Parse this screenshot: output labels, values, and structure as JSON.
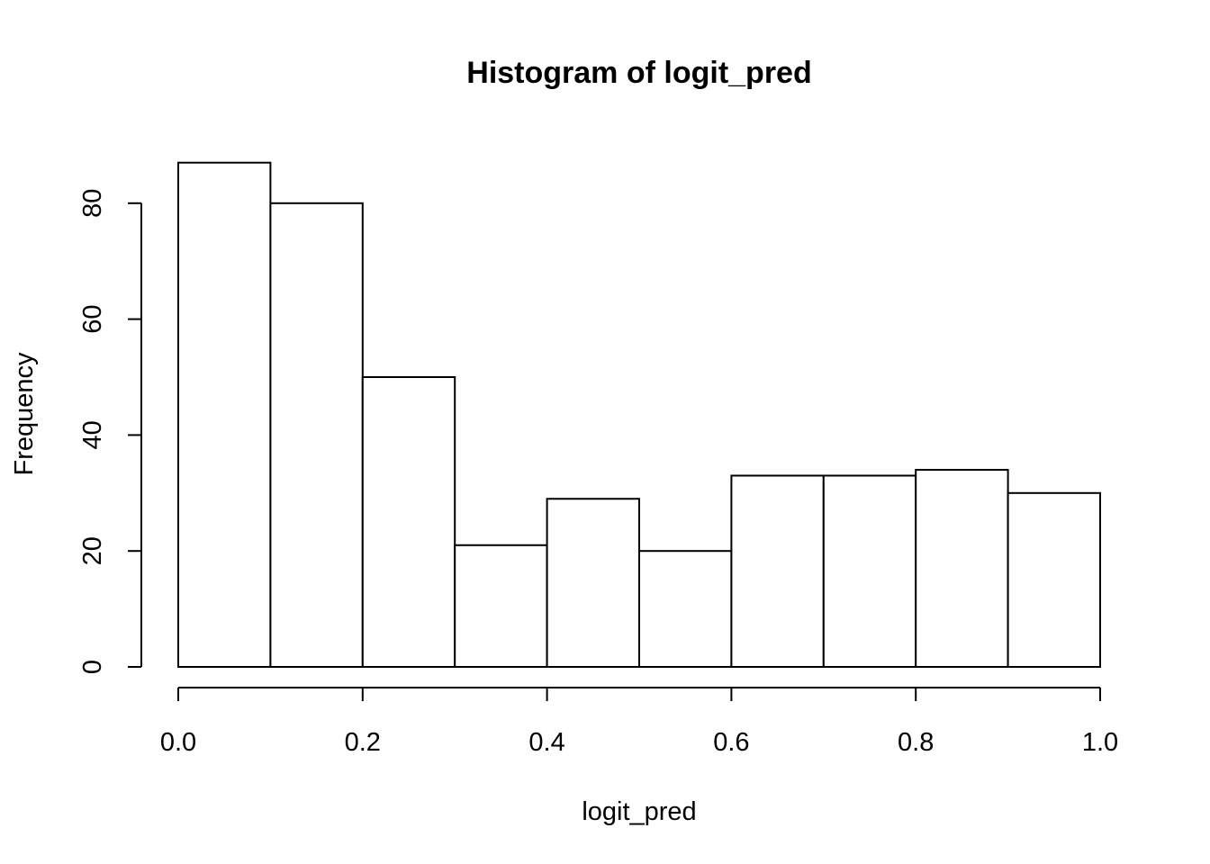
{
  "chart_data": {
    "type": "bar",
    "title": "Histogram of logit_pred",
    "xlabel": "logit_pred",
    "ylabel": "Frequency",
    "bins": [
      {
        "start": 0.0,
        "end": 0.1,
        "count": 87
      },
      {
        "start": 0.1,
        "end": 0.2,
        "count": 80
      },
      {
        "start": 0.2,
        "end": 0.3,
        "count": 50
      },
      {
        "start": 0.3,
        "end": 0.4,
        "count": 21
      },
      {
        "start": 0.4,
        "end": 0.5,
        "count": 29
      },
      {
        "start": 0.5,
        "end": 0.6,
        "count": 20
      },
      {
        "start": 0.6,
        "end": 0.7,
        "count": 33
      },
      {
        "start": 0.7,
        "end": 0.8,
        "count": 33
      },
      {
        "start": 0.8,
        "end": 0.9,
        "count": 34
      },
      {
        "start": 0.9,
        "end": 1.0,
        "count": 30
      }
    ],
    "xlim": [
      0,
      1
    ],
    "ylim": [
      0,
      87
    ],
    "x_ticks": [
      "0.0",
      "0.2",
      "0.4",
      "0.6",
      "0.8",
      "1.0"
    ],
    "y_ticks": [
      "0",
      "20",
      "40",
      "60",
      "80"
    ],
    "grid": false,
    "legend": "none"
  }
}
